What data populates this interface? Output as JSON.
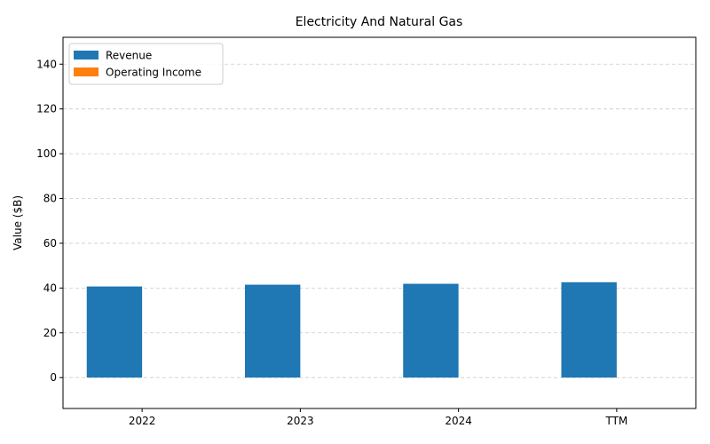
{
  "chart_data": {
    "type": "bar",
    "title": "Electricity And Natural Gas",
    "xlabel": "",
    "ylabel": "Value ($B)",
    "categories": [
      "2022",
      "2023",
      "2024",
      "TTM"
    ],
    "series": [
      {
        "name": "Revenue",
        "values": [
          40.7,
          41.5,
          41.9,
          42.6
        ],
        "color": "#1f77b4"
      },
      {
        "name": "Operating Income",
        "values": [
          0,
          0,
          0,
          0
        ],
        "color": "#ff7f0e"
      }
    ],
    "ylim": [
      -13.8,
      152
    ],
    "yticks": [
      0,
      20,
      40,
      60,
      80,
      100,
      120,
      140
    ],
    "grid": "y-dashed",
    "legend": "top-left"
  }
}
